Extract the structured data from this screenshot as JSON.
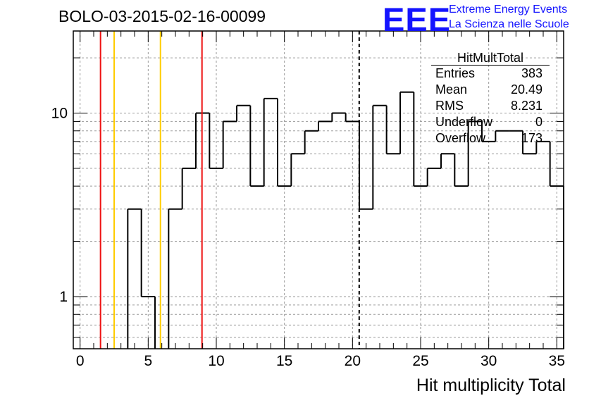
{
  "header": {
    "title": "BOLO-03-2015-02-16-00099"
  },
  "logo": {
    "mark": "EEE",
    "line1": "Extreme Energy Events",
    "line2": "La Scienza nelle Scuole",
    "color": "#1414ff"
  },
  "stats": {
    "title": "HitMultTotal",
    "rows": [
      {
        "label": "Entries",
        "value": "383"
      },
      {
        "label": "Mean",
        "value": "20.49"
      },
      {
        "label": "RMS",
        "value": "8.231"
      },
      {
        "label": "Underflow",
        "value": "0"
      },
      {
        "label": "Overflow",
        "value": "173"
      }
    ]
  },
  "chart_data": {
    "type": "bar",
    "title": "BOLO-03-2015-02-16-00099",
    "xlabel": "Hit multiplicity Total",
    "ylabel": "",
    "x_range": [
      -0.5,
      35.5
    ],
    "y_scale": "log",
    "xticks": [
      0,
      5,
      10,
      15,
      20,
      25,
      30,
      35
    ],
    "yticks": [
      {
        "value": 1,
        "label": "1"
      },
      {
        "value": 10,
        "label": "10"
      }
    ],
    "grid": true,
    "bin_width": 1,
    "bin_low_edge": -0.5,
    "values": [
      0,
      0,
      0,
      0,
      3,
      1,
      0,
      3,
      5,
      10,
      5,
      9,
      11,
      4,
      12,
      4,
      6,
      8,
      9,
      10,
      9,
      3,
      11,
      6,
      13,
      4,
      5,
      6,
      4,
      9,
      7,
      8,
      8,
      6,
      7,
      4
    ],
    "vertical_lines": [
      {
        "x": 1.5,
        "color": "#ee1111",
        "style": "solid"
      },
      {
        "x": 2.5,
        "color": "#ffcc00",
        "style": "solid"
      },
      {
        "x": 5.9,
        "color": "#ffcc00",
        "style": "solid"
      },
      {
        "x": 8.95,
        "color": "#ee1111",
        "style": "solid"
      },
      {
        "x": 20.49,
        "color": "#000000",
        "style": "dashed"
      }
    ]
  }
}
